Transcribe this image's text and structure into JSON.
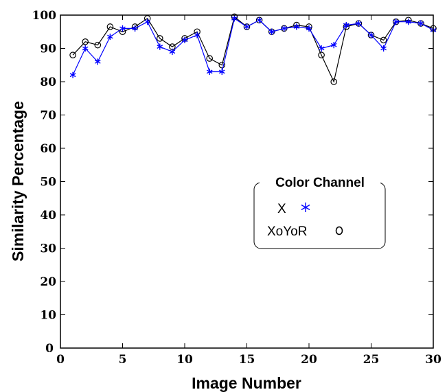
{
  "chart_data": {
    "type": "line",
    "xlabel": "Image Number",
    "ylabel": "Similarity Percentage",
    "xlim": [
      0,
      30
    ],
    "ylim": [
      0,
      100
    ],
    "xticks": [
      0,
      5,
      10,
      15,
      20,
      25,
      30
    ],
    "yticks": [
      0,
      10,
      20,
      30,
      40,
      50,
      60,
      70,
      80,
      90,
      100
    ],
    "x": [
      1,
      2,
      3,
      4,
      5,
      6,
      7,
      8,
      9,
      10,
      11,
      12,
      13,
      14,
      15,
      16,
      17,
      18,
      19,
      20,
      21,
      22,
      23,
      24,
      25,
      26,
      27,
      28,
      29,
      30
    ],
    "legend": {
      "title": "Color Channel",
      "position": "center-right"
    },
    "series": [
      {
        "name": "X",
        "marker": "*",
        "color": "#0000ff",
        "values": [
          82,
          90,
          86,
          93.5,
          96,
          96,
          98,
          90.5,
          89,
          92.5,
          94,
          83,
          83,
          99,
          96.5,
          98.5,
          95,
          96,
          96.5,
          96,
          90,
          91,
          97,
          97.5,
          94,
          90,
          98,
          98,
          97.5,
          95.5
        ]
      },
      {
        "name": "XoYoR",
        "marker": "o",
        "color": "#000000",
        "values": [
          88,
          92,
          91,
          96.5,
          95,
          96.5,
          99,
          93,
          90.5,
          93,
          95,
          87,
          85,
          99.5,
          96.5,
          98.5,
          95,
          96,
          97,
          96.5,
          88,
          80,
          96.5,
          97.5,
          94,
          92.5,
          98,
          98.5,
          97.5,
          96
        ]
      }
    ]
  }
}
